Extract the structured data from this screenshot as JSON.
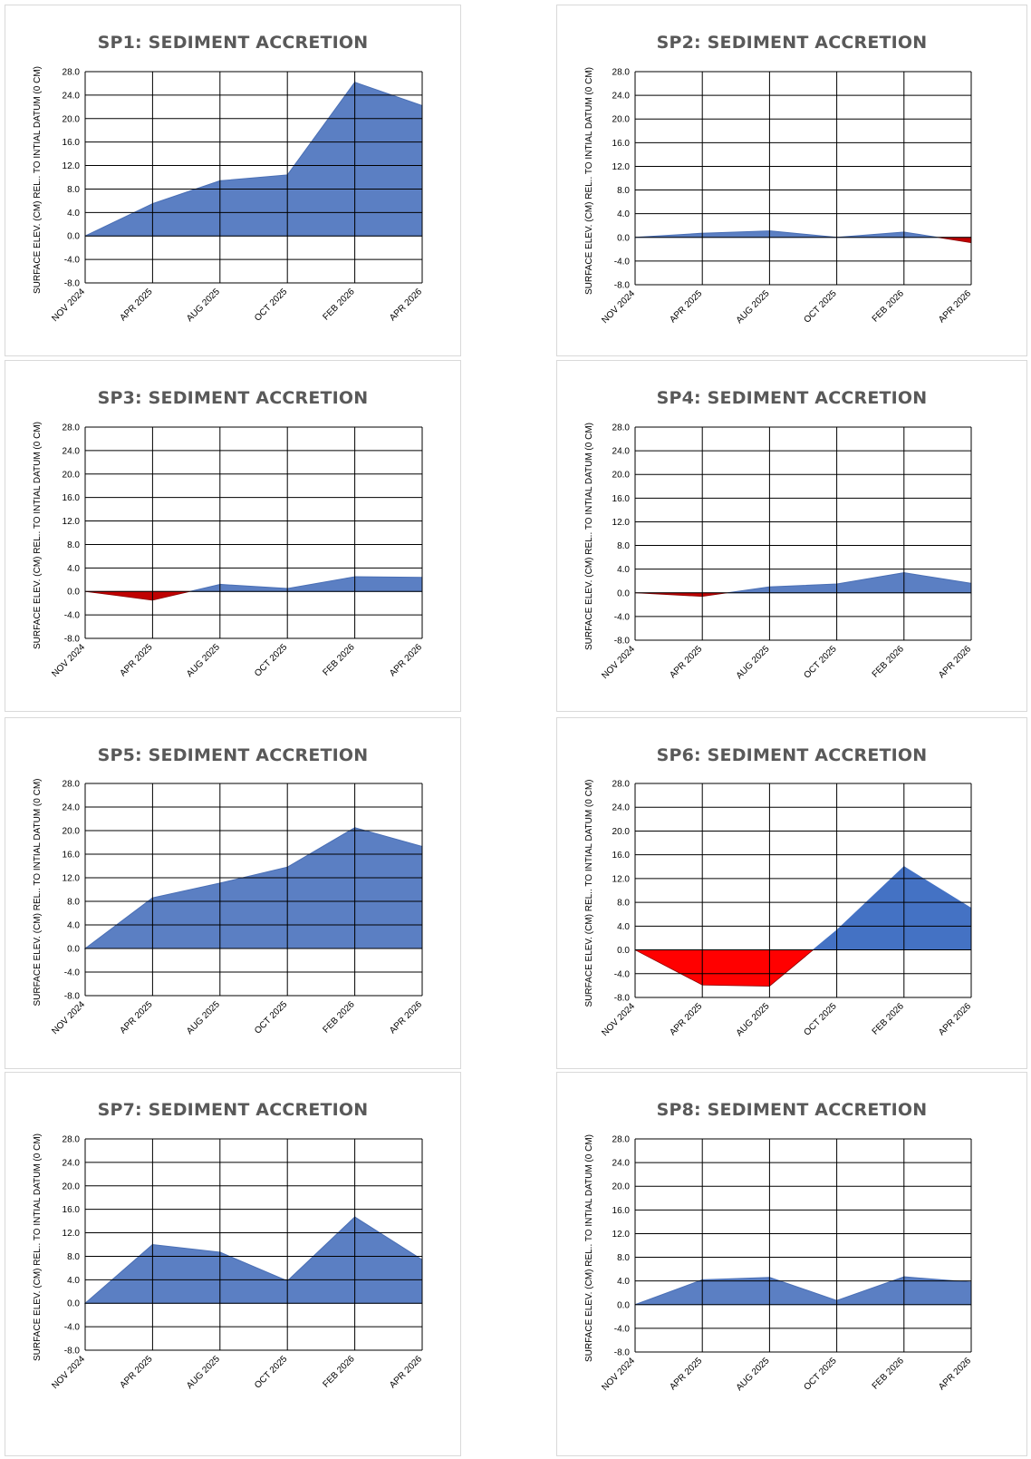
{
  "chart_data": [
    {
      "type": "area",
      "title": "SP1:  SEDIMENT ACCRETION",
      "ylabel": "SURFACE ELEV. (CM) REL.. TO INTIAL DATUM (0 CM)",
      "categories": [
        "NOV 2024",
        "APR 2025",
        "AUG 2025",
        "OCT 2025",
        "FEB 2026",
        "APR 2026"
      ],
      "yticks": [
        "28.0",
        "24.0",
        "20.0",
        "16.0",
        "12.0",
        "8.0",
        "4.0",
        "0.0",
        "-4.0",
        "-8.0"
      ],
      "ylim": [
        -8,
        28
      ],
      "values": [
        0,
        5.5,
        9.4,
        10.4,
        26.2,
        22.2
      ],
      "grid": true
    },
    {
      "type": "area",
      "title": "SP2:  SEDIMENT ACCRETION",
      "ylabel": "SURFACE ELEV. (CM) REL.. TO INTIAL DATUM (0 CM)",
      "categories": [
        "NOV 2024",
        "APR 2025",
        "AUG 2025",
        "OCT 2025",
        "FEB 2026",
        "APR 2026"
      ],
      "yticks": [
        "28.0",
        "24.0",
        "20.0",
        "16.0",
        "12.0",
        "8.0",
        "4.0",
        "0.0",
        "-4.0",
        "-8.0"
      ],
      "ylim": [
        -8,
        28
      ],
      "values": [
        0,
        0.7,
        1.1,
        0,
        0.9,
        -0.9
      ],
      "grid": true
    },
    {
      "type": "area",
      "title": "SP3:  SEDIMENT ACCRETION",
      "ylabel": "SURFACE ELEV. (CM) REL.. TO INTIAL DATUM (0 CM)",
      "categories": [
        "NOV 2024",
        "APR 2025",
        "AUG 2025",
        "OCT 2025",
        "FEB 2026",
        "APR 2026"
      ],
      "yticks": [
        "28.0",
        "24.0",
        "20.0",
        "16.0",
        "12.0",
        "8.0",
        "4.0",
        "0.0",
        "-4.0",
        "-8.0"
      ],
      "ylim": [
        -8,
        28
      ],
      "values": [
        0,
        -1.5,
        1.2,
        0.5,
        2.5,
        2.4
      ],
      "grid": true
    },
    {
      "type": "area",
      "title": "SP4:  SEDIMENT ACCRETION",
      "ylabel": "SURFACE ELEV. (CM) REL.. TO INTIAL DATUM (0 CM)",
      "categories": [
        "NOV 2024",
        "APR 2025",
        "AUG 2025",
        "OCT 2025",
        "FEB 2026",
        "APR 2026"
      ],
      "yticks": [
        "28.0",
        "24.0",
        "20.0",
        "16.0",
        "12.0",
        "8.0",
        "4.0",
        "0.0",
        "-4.0",
        "-8.0"
      ],
      "ylim": [
        -8,
        28
      ],
      "values": [
        0,
        -0.6,
        1.0,
        1.5,
        3.4,
        1.6
      ],
      "grid": true
    },
    {
      "type": "area",
      "title": "SP5:  SEDIMENT ACCRETION",
      "ylabel": "SURFACE ELEV. (CM) REL.. TO INTIAL DATUM (0 CM)",
      "categories": [
        "NOV 2024",
        "APR 2025",
        "AUG 2025",
        "OCT 2025",
        "FEB 2026",
        "APR 2026"
      ],
      "yticks": [
        "28.0",
        "24.0",
        "20.0",
        "16.0",
        "12.0",
        "8.0",
        "4.0",
        "0.0",
        "-4.0",
        "-8.0"
      ],
      "ylim": [
        -8,
        28
      ],
      "values": [
        0,
        8.6,
        11.1,
        13.8,
        20.5,
        17.3
      ],
      "grid": true
    },
    {
      "type": "area",
      "title": "SP6:  SEDIMENT ACCRETION",
      "ylabel": "SURFACE ELEV. (CM) REL.. TO INTIAL DATUM (0 CM)",
      "categories": [
        "NOV 2024",
        "APR 2025",
        "AUG 2025",
        "OCT 2025",
        "FEB 2026",
        "APR 2026"
      ],
      "yticks": [
        "28.0",
        "24.0",
        "20.0",
        "16.0",
        "12.0",
        "8.0",
        "4.0",
        "0.0",
        "-4.0",
        "-8.0"
      ],
      "ylim": [
        -8,
        28
      ],
      "values": [
        0,
        -5.9,
        -6.1,
        3.3,
        14.0,
        7.0
      ],
      "grid": true
    },
    {
      "type": "area",
      "title": "SP7:  SEDIMENT ACCRETION",
      "ylabel": "SURFACE ELEV. (CM) REL.. TO INTIAL DATUM (0 CM)",
      "categories": [
        "NOV 2024",
        "APR 2025",
        "AUG 2025",
        "OCT 2025",
        "FEB 2026",
        "APR 2026"
      ],
      "yticks": [
        "28.0",
        "24.0",
        "20.0",
        "16.0",
        "12.0",
        "8.0",
        "4.0",
        "0.0",
        "-4.0",
        "-8.0"
      ],
      "ylim": [
        -8,
        28
      ],
      "values": [
        0,
        10.0,
        8.7,
        3.8,
        14.7,
        7.4
      ],
      "grid": true
    },
    {
      "type": "area",
      "title": "SP8:  SEDIMENT ACCRETION",
      "ylabel": "SURFACE ELEV. (CM) REL.. TO INTIAL DATUM (0 CM)",
      "categories": [
        "NOV 2024",
        "APR 2025",
        "AUG 2025",
        "OCT 2025",
        "FEB 2026",
        "APR 2026"
      ],
      "yticks": [
        "28.0",
        "24.0",
        "20.0",
        "16.0",
        "12.0",
        "8.0",
        "4.0",
        "0.0",
        "-4.0",
        "-8.0"
      ],
      "ylim": [
        -8,
        28
      ],
      "values": [
        0,
        4.2,
        4.6,
        0.7,
        4.7,
        3.8
      ],
      "grid": true
    }
  ],
  "colors": {
    "positive_fill": "#5b7fc3",
    "positive_fill_strong": "#4472c4",
    "negative_fill": "#c00000",
    "negative_fill_strong": "#ff0000",
    "grid": "#000000",
    "title": "#595959"
  }
}
